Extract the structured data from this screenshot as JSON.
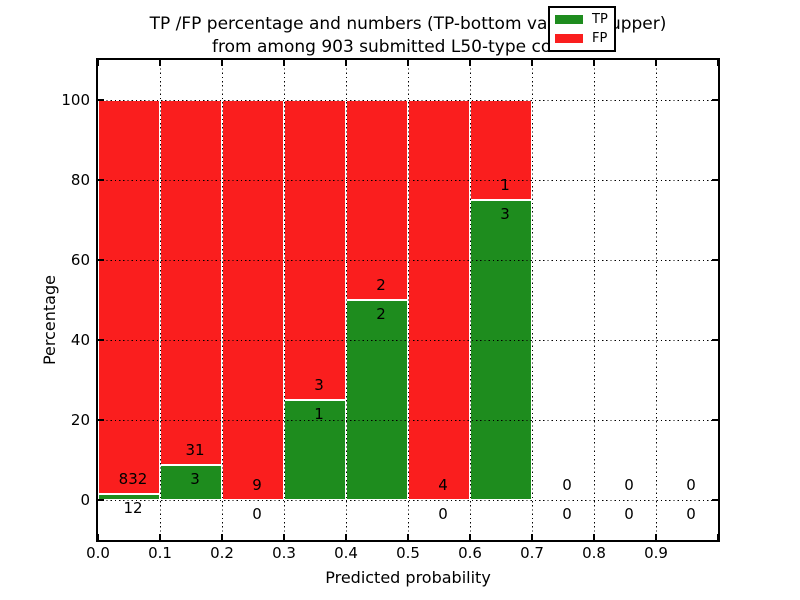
{
  "title": {
    "line1": "TP /FP percentage and numbers (TP-bottom value, FP-upper)",
    "line2": "from among 903 submitted L50-type contacts"
  },
  "x_axis": {
    "label": "Predicted probability",
    "ticks": [
      "0.0",
      "0.1",
      "0.2",
      "0.3",
      "0.4",
      "0.5",
      "0.6",
      "0.7",
      "0.8",
      "0.9"
    ]
  },
  "y_axis": {
    "label": "Percentage",
    "ticks": [
      "0",
      "20",
      "40",
      "60",
      "80",
      "100"
    ]
  },
  "legend": {
    "items": [
      {
        "label": "TP",
        "color": "#1e8c1e"
      },
      {
        "label": "FP",
        "color": "#fa1e1e"
      }
    ]
  },
  "chart_data": {
    "type": "bar",
    "stacked": true,
    "percentage_stacked": true,
    "title": "TP /FP percentage and numbers (TP-bottom value, FP-upper) from among 903 submitted L50-type contacts",
    "xlabel": "Predicted probability",
    "ylabel": "Percentage",
    "xlim": [
      0.0,
      1.0
    ],
    "ylim": [
      -10,
      110
    ],
    "grid": true,
    "grid_style": "dotted",
    "legend_position": "upper right",
    "total_submitted_contacts": 903,
    "contact_type": "L50",
    "bin_width": 0.1,
    "categories": [
      "0.0-0.1",
      "0.1-0.2",
      "0.2-0.3",
      "0.3-0.4",
      "0.4-0.5",
      "0.5-0.6",
      "0.6-0.7",
      "0.7-0.8",
      "0.8-0.9",
      "0.9-1.0"
    ],
    "series": [
      {
        "name": "TP",
        "color": "#1e8c1e",
        "counts": [
          12,
          3,
          0,
          1,
          2,
          0,
          3,
          0,
          0,
          0
        ]
      },
      {
        "name": "FP",
        "color": "#fa1e1e",
        "counts": [
          832,
          31,
          9,
          3,
          2,
          4,
          1,
          0,
          0,
          0
        ]
      }
    ],
    "tp_percent": [
      1.42,
      8.82,
      0,
      25,
      50,
      0,
      75,
      0,
      0,
      0
    ]
  }
}
